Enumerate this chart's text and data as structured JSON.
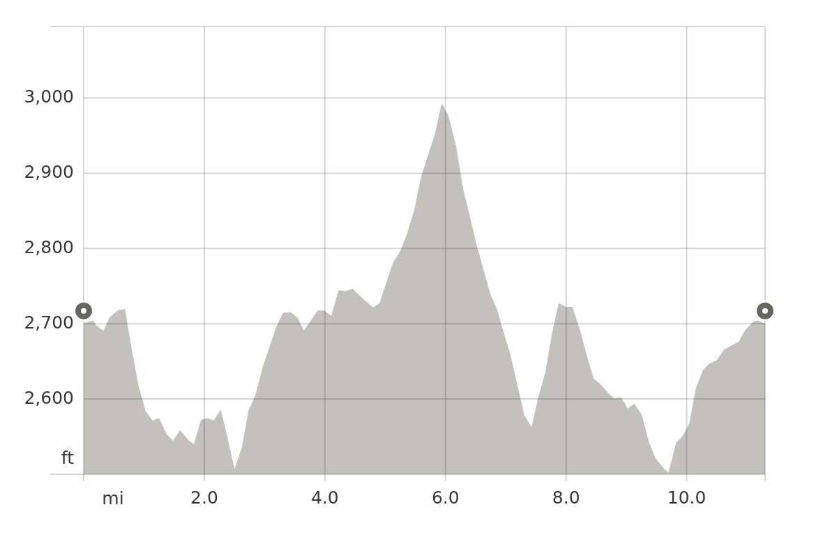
{
  "chart_data": {
    "type": "area",
    "xlabel": "mi",
    "ylabel": "ft",
    "x": [
      0,
      0.15,
      0.21,
      0.33,
      0.44,
      0.58,
      0.68,
      0.79,
      0.9,
      1.02,
      1.14,
      1.25,
      1.37,
      1.48,
      1.6,
      1.71,
      1.83,
      1.95,
      2.05,
      2.16,
      2.27,
      2.39,
      2.5,
      2.63,
      2.74,
      2.85,
      2.98,
      3.2,
      3.31,
      3.43,
      3.54,
      3.65,
      3.88,
      3.99,
      4.11,
      4.23,
      4.34,
      4.46,
      4.64,
      4.8,
      4.91,
      5.02,
      5.14,
      5.26,
      5.37,
      5.49,
      5.6,
      5.72,
      5.83,
      5.94,
      6.04,
      6.17,
      6.29,
      6.4,
      6.51,
      6.63,
      6.74,
      6.85,
      6.96,
      7.07,
      7.19,
      7.3,
      7.43,
      7.54,
      7.66,
      7.77,
      7.88,
      7.99,
      8.1,
      8.22,
      8.33,
      8.45,
      8.56,
      8.68,
      8.8,
      8.91,
      9.02,
      9.13,
      9.25,
      9.36,
      9.47,
      9.6,
      9.7,
      9.83,
      9.94,
      10.05,
      10.16,
      10.28,
      10.38,
      10.5,
      10.62,
      10.73,
      10.87,
      10.97,
      11.1,
      11.17,
      11.3
    ],
    "series": [
      {
        "color": "#c2c1bc",
        "values": [
          2700,
          2704,
          2697,
          2690,
          2709,
          2718,
          2719,
          2667,
          2619,
          2584,
          2571,
          2574,
          2553,
          2544,
          2558,
          2547,
          2539,
          2572,
          2574,
          2571,
          2585,
          2545,
          2505,
          2536,
          2585,
          2604,
          2644,
          2696,
          2714,
          2715,
          2708,
          2690,
          2717,
          2717,
          2710,
          2744,
          2743,
          2746,
          2732,
          2721,
          2727,
          2754,
          2782,
          2797,
          2820,
          2852,
          2895,
          2925,
          2952,
          2992,
          2977,
          2936,
          2878,
          2842,
          2805,
          2770,
          2739,
          2719,
          2688,
          2659,
          2617,
          2579,
          2561,
          2601,
          2635,
          2686,
          2727,
          2722,
          2722,
          2693,
          2660,
          2627,
          2620,
          2609,
          2600,
          2602,
          2587,
          2593,
          2579,
          2545,
          2522,
          2509,
          2501,
          2542,
          2551,
          2568,
          2615,
          2639,
          2647,
          2651,
          2665,
          2670,
          2676,
          2691,
          2702,
          2704,
          2700
        ]
      },
      {
        "type": "scatter",
        "color": "#66655e",
        "marker": "circle",
        "x": [
          0,
          11.3
        ],
        "values": [
          2717,
          2717
        ]
      }
    ],
    "xlim": [
      0,
      11.3
    ],
    "ylim": [
      2500,
      3095
    ],
    "xticks": [
      {
        "value": 2,
        "label": "2.0"
      },
      {
        "value": 4,
        "label": "4.0"
      },
      {
        "value": 6,
        "label": "6.0"
      },
      {
        "value": 8,
        "label": "8.0"
      },
      {
        "value": 10,
        "label": "10.0"
      }
    ],
    "yticks": [
      {
        "value": 2600,
        "label": "2,600"
      },
      {
        "value": 2700,
        "label": "2,700"
      },
      {
        "value": 2800,
        "label": "2,800"
      },
      {
        "value": 2900,
        "label": "2,900"
      },
      {
        "value": 3000,
        "label": "3,000"
      }
    ],
    "grid": true
  }
}
